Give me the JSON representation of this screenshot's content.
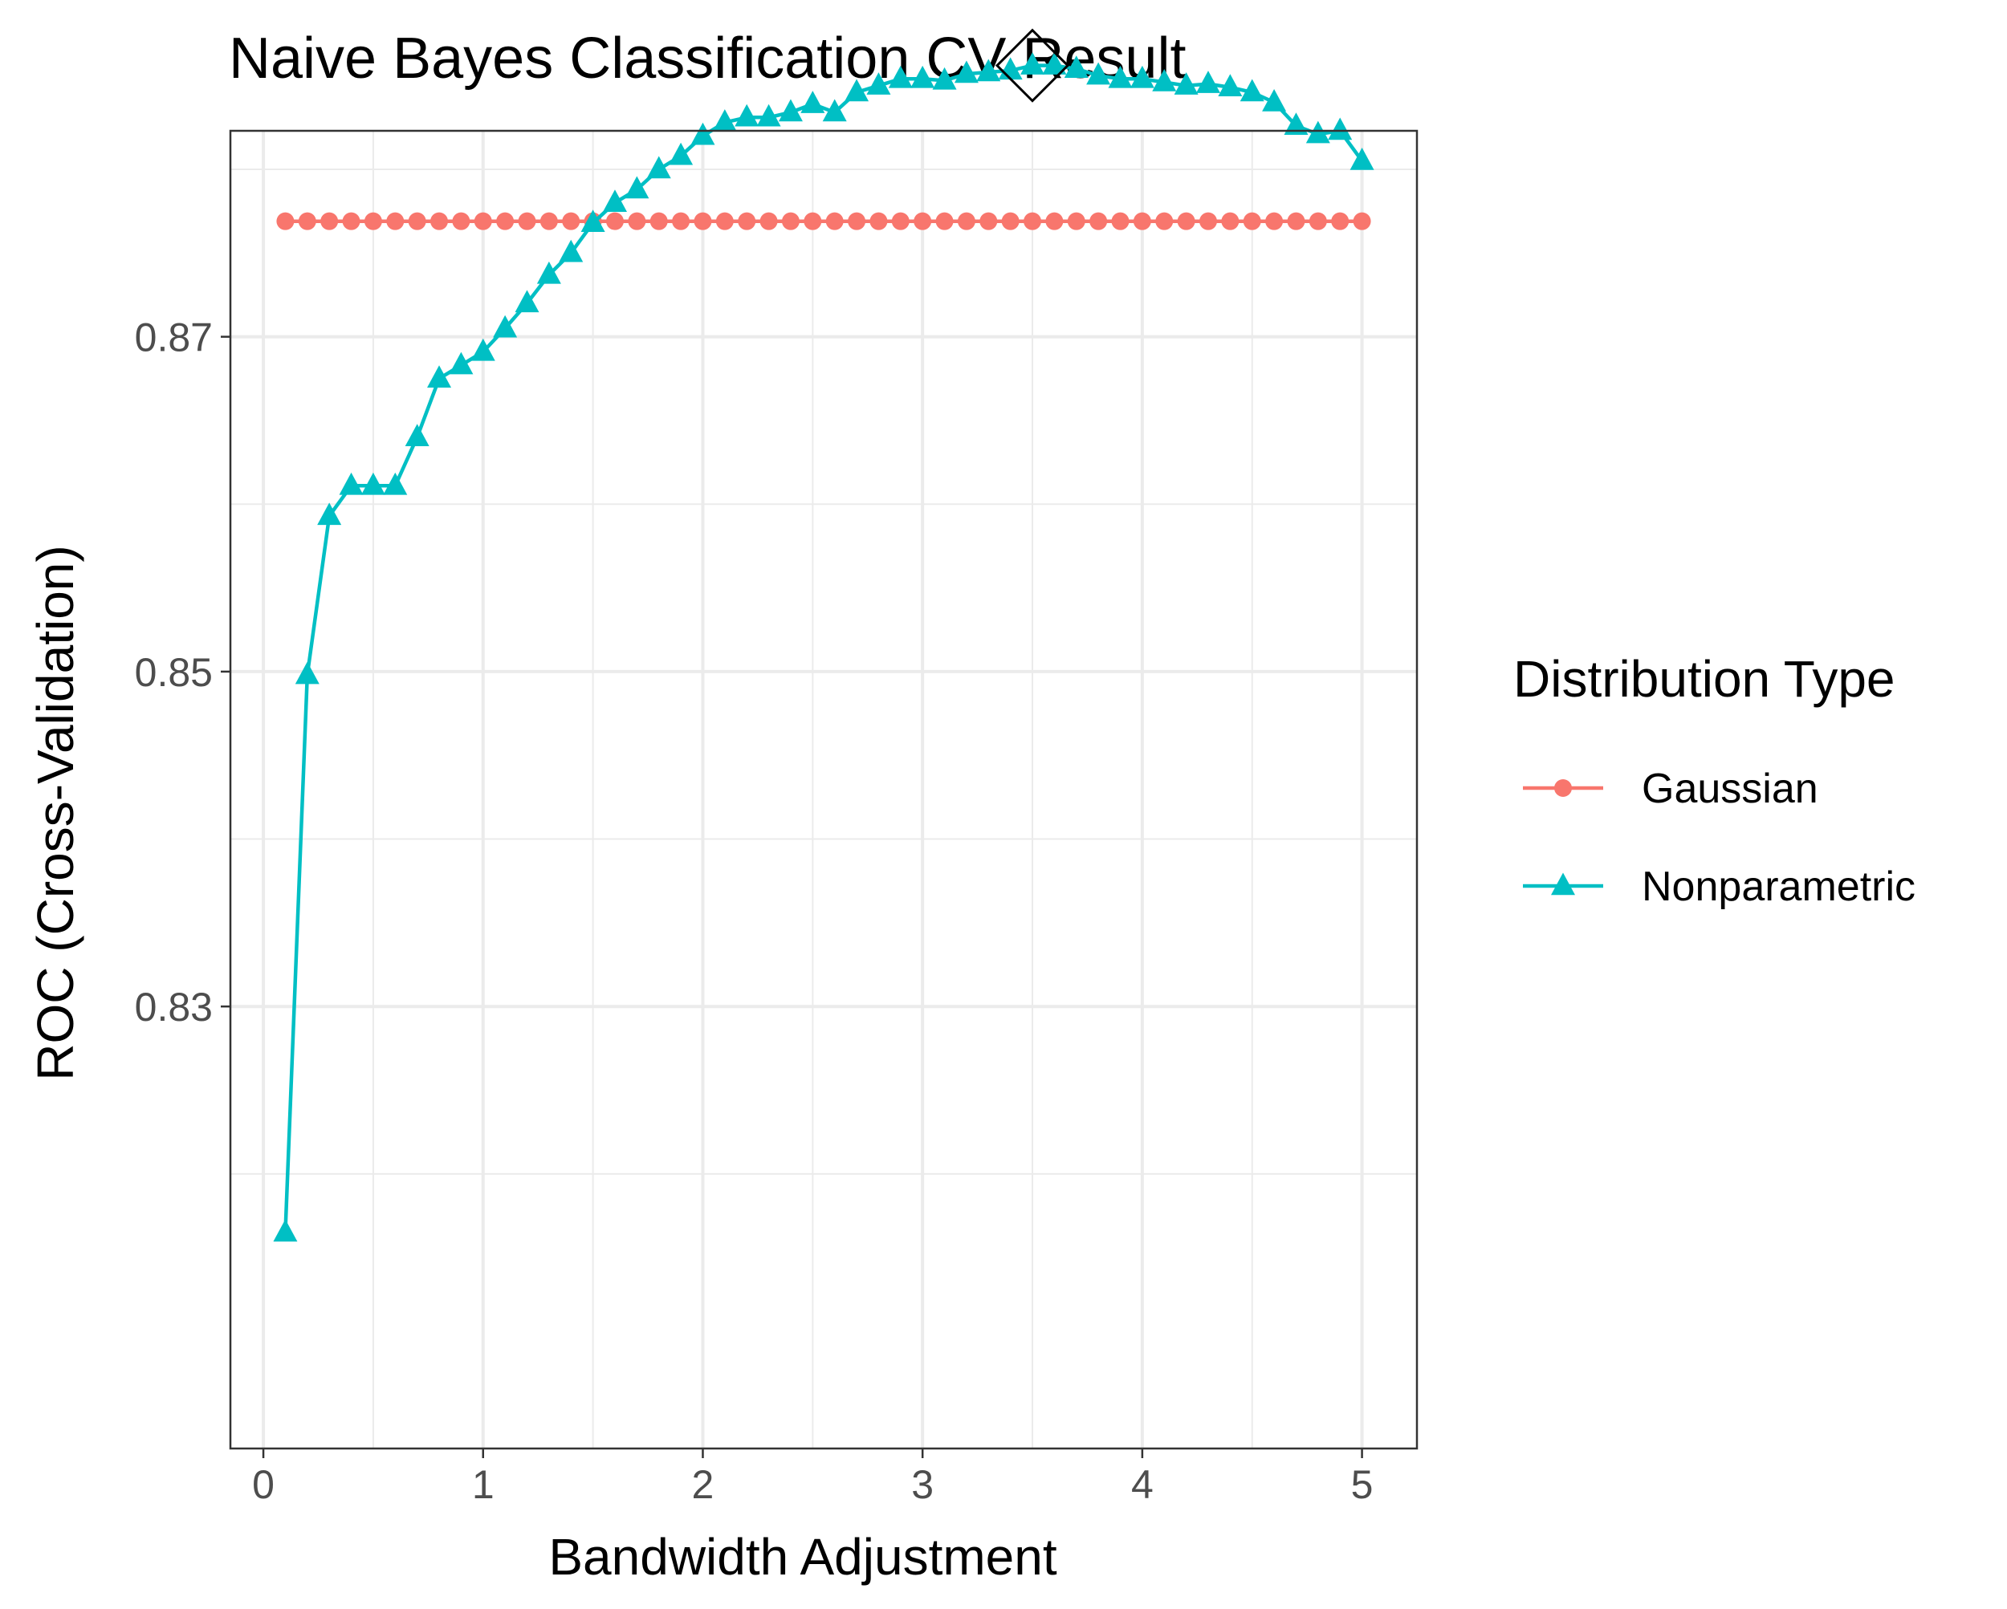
{
  "chart_data": {
    "type": "line",
    "title": "Naive Bayes Classification CV Result",
    "xlabel": "Bandwidth Adjustment",
    "ylabel": "ROC (Cross-Validation)",
    "xlim": [
      -0.15,
      5.25
    ],
    "ylim": [
      0.8036,
      0.8823
    ],
    "x_ticks": [
      0,
      1,
      2,
      3,
      4,
      5
    ],
    "x_tick_labels": [
      "0",
      "1",
      "2",
      "3",
      "4",
      "5"
    ],
    "y_ticks": [
      0.83,
      0.85,
      0.87
    ],
    "y_tick_labels": [
      "0.83",
      "0.85",
      "0.87"
    ],
    "x_minor_ticks": [
      0.5,
      1.5,
      2.5,
      3.5,
      4.5
    ],
    "y_minor_ticks": [
      0.82,
      0.84,
      0.86,
      0.88
    ],
    "grid": true,
    "legend": {
      "title": "Distribution Type",
      "position": "right"
    },
    "x": [
      0.1,
      0.2,
      0.3,
      0.4,
      0.5,
      0.6,
      0.7,
      0.8,
      0.9,
      1.0,
      1.1,
      1.2,
      1.3,
      1.4,
      1.5,
      1.6,
      1.7,
      1.8,
      1.9,
      2.0,
      2.1,
      2.2,
      2.3,
      2.4,
      2.5,
      2.6,
      2.7,
      2.8,
      2.9,
      3.0,
      3.1,
      3.2,
      3.3,
      3.4,
      3.5,
      3.6,
      3.7,
      3.8,
      3.9,
      4.0,
      4.1,
      4.2,
      4.3,
      4.4,
      4.5,
      4.6,
      4.7,
      4.8,
      4.9,
      5.0
    ],
    "series": [
      {
        "name": "Gaussian",
        "color": "#F8766D",
        "marker": "circle",
        "values": [
          0.8769,
          0.8769,
          0.8769,
          0.8769,
          0.8769,
          0.8769,
          0.8769,
          0.8769,
          0.8769,
          0.8769,
          0.8769,
          0.8769,
          0.8769,
          0.8769,
          0.8769,
          0.8769,
          0.8769,
          0.8769,
          0.8769,
          0.8769,
          0.8769,
          0.8769,
          0.8769,
          0.8769,
          0.8769,
          0.8769,
          0.8769,
          0.8769,
          0.8769,
          0.8769,
          0.8769,
          0.8769,
          0.8769,
          0.8769,
          0.8769,
          0.8769,
          0.8769,
          0.8769,
          0.8769,
          0.8769,
          0.8769,
          0.8769,
          0.8769,
          0.8769,
          0.8769,
          0.8769,
          0.8769,
          0.8769,
          0.8769,
          0.8769
        ]
      },
      {
        "name": "Nonparametric",
        "color": "#00BFC4",
        "marker": "triangle",
        "values": [
          0.8165,
          0.8498,
          0.8593,
          0.8611,
          0.8611,
          0.8611,
          0.864,
          0.8675,
          0.8683,
          0.8691,
          0.8705,
          0.872,
          0.8737,
          0.875,
          0.8768,
          0.878,
          0.8788,
          0.88,
          0.8808,
          0.882,
          0.8828,
          0.8831,
          0.8831,
          0.8834,
          0.8839,
          0.8834,
          0.8846,
          0.885,
          0.8854,
          0.8854,
          0.8853,
          0.8857,
          0.8858,
          0.8859,
          0.8862,
          0.8862,
          0.886,
          0.8856,
          0.8854,
          0.8854,
          0.8852,
          0.885,
          0.8851,
          0.8849,
          0.8846,
          0.884,
          0.8826,
          0.8821,
          0.8823,
          0.8805
        ]
      }
    ],
    "annotations": [
      {
        "type": "diamond",
        "x": 3.5,
        "y": 0.8862,
        "label": ""
      }
    ]
  }
}
